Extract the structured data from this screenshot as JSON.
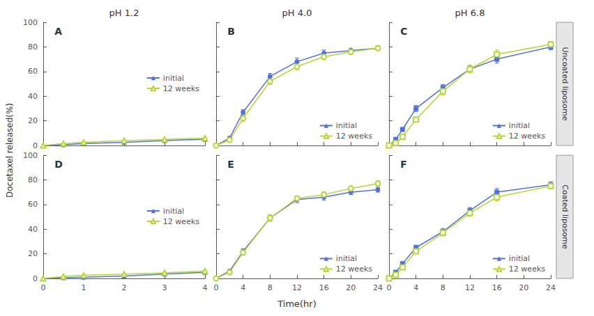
{
  "chart_data": [
    {
      "type": "line",
      "title": "pH 1.2",
      "annotations": [
        "A"
      ],
      "ylabel": "Docetaxel released(%)",
      "x": [
        0,
        0.5,
        1,
        2,
        3,
        4
      ],
      "series": [
        {
          "name": "initial",
          "marker": "triangle",
          "values": [
            0,
            0.5,
            1.5,
            2.5,
            4.0,
            5.0
          ],
          "errors": [
            0,
            0.3,
            0.3,
            0.3,
            0.3,
            0.3
          ]
        },
        {
          "name": "12 weeks",
          "marker": "open triangle",
          "values": [
            0,
            1.5,
            2.5,
            4.0,
            5.0,
            6.0
          ],
          "errors": [
            0,
            0.3,
            0.3,
            0.3,
            0.3,
            0.3
          ]
        }
      ],
      "xlim": [
        0,
        4
      ],
      "xticks": [
        0,
        1,
        2,
        3,
        4
      ],
      "ylim": [
        0,
        100
      ],
      "yticks": [
        0,
        20,
        40,
        60,
        80,
        100
      ],
      "legend": "center right",
      "grid": false,
      "tick_labels": "y"
    },
    {
      "type": "line",
      "title": "pH 4.0",
      "annotations": [
        "B"
      ],
      "x": [
        0,
        2,
        4,
        8,
        12,
        16,
        20,
        24
      ],
      "series": [
        {
          "name": "initial",
          "marker": "circle",
          "values": [
            0,
            6.0,
            27.0,
            56.0,
            68.0,
            75.0,
            77.0,
            79.0
          ],
          "errors": [
            0,
            0.8,
            2.0,
            2.5,
            3.0,
            2.5,
            2.0,
            2.0
          ]
        },
        {
          "name": "12 weeks",
          "marker": "open circle",
          "values": [
            0,
            4.5,
            22.0,
            52.0,
            64.0,
            72.0,
            76.0,
            79.0
          ],
          "errors": [
            0,
            0.8,
            2.5,
            2.5,
            2.5,
            2.5,
            2.0,
            1.5
          ]
        }
      ],
      "xlim": [
        0,
        24
      ],
      "xticks": [
        0,
        4,
        8,
        12,
        16,
        20,
        24
      ],
      "ylim": [
        0,
        100
      ],
      "yticks": [
        0,
        20,
        40,
        60,
        80,
        100
      ],
      "legend": "lower right",
      "grid": false,
      "tick_labels": false
    },
    {
      "type": "line",
      "title": "pH 6.8",
      "annotations": [
        "C"
      ],
      "subtitle": "Uncoated liposome",
      "x": [
        0,
        1,
        2,
        4,
        8,
        12,
        16,
        24
      ],
      "series": [
        {
          "name": "initial",
          "marker": "square",
          "values": [
            0,
            5.0,
            13.0,
            30.0,
            47.0,
            62.0,
            70.0,
            80.0
          ],
          "errors": [
            0,
            1.0,
            1.5,
            2.5,
            2.5,
            3.0,
            3.0,
            2.5
          ]
        },
        {
          "name": "12 weeks",
          "marker": "open square",
          "values": [
            0,
            2.0,
            7.0,
            21.0,
            44.0,
            62.0,
            74.0,
            82.0
          ],
          "errors": [
            0,
            1.0,
            1.5,
            2.0,
            3.0,
            3.0,
            3.5,
            2.5
          ]
        }
      ],
      "xlim": [
        0,
        24
      ],
      "xticks": [
        0,
        4,
        8,
        12,
        16,
        20,
        24
      ],
      "ylim": [
        0,
        100
      ],
      "yticks": [
        0,
        20,
        40,
        60,
        80,
        100
      ],
      "legend": "lower right",
      "grid": false,
      "tick_labels": false
    },
    {
      "type": "line",
      "annotations": [
        "D"
      ],
      "x": [
        0,
        0.5,
        1,
        2,
        3,
        4
      ],
      "series": [
        {
          "name": "initial",
          "marker": "triangle",
          "values": [
            0,
            0.5,
            1.0,
            2.0,
            3.5,
            5.0
          ],
          "errors": [
            0,
            0.3,
            0.3,
            0.3,
            0.3,
            0.3
          ]
        },
        {
          "name": "12 weeks",
          "marker": "open triangle",
          "values": [
            0,
            1.5,
            2.5,
            3.5,
            4.5,
            6.0
          ],
          "errors": [
            0,
            0.3,
            0.3,
            0.3,
            0.3,
            0.3
          ]
        }
      ],
      "xlim": [
        0,
        4
      ],
      "xticks": [
        0,
        1,
        2,
        3,
        4
      ],
      "ylim": [
        0,
        100
      ],
      "yticks": [
        0,
        20,
        40,
        60,
        80,
        100
      ],
      "legend": "center right",
      "grid": false,
      "tick_labels": true
    },
    {
      "type": "line",
      "annotations": [
        "E"
      ],
      "xlabel": "Time(hr)",
      "x": [
        0,
        2,
        4,
        8,
        12,
        16,
        20,
        24
      ],
      "series": [
        {
          "name": "initial",
          "marker": "circle",
          "values": [
            0,
            6.0,
            22.0,
            49.0,
            64.0,
            66.0,
            70.0,
            72.0
          ],
          "errors": [
            0,
            0.8,
            2.0,
            2.5,
            2.5,
            2.5,
            2.0,
            2.0
          ]
        },
        {
          "name": "12 weeks",
          "marker": "open circle",
          "values": [
            0,
            5.0,
            21.0,
            49.0,
            65.0,
            68.0,
            73.0,
            77.0
          ],
          "errors": [
            0,
            0.8,
            2.0,
            2.5,
            2.0,
            2.5,
            2.0,
            2.5
          ]
        }
      ],
      "xlim": [
        0,
        24
      ],
      "xticks": [
        0,
        4,
        8,
        12,
        16,
        20,
        24
      ],
      "ylim": [
        0,
        100
      ],
      "yticks": [
        0,
        20,
        40,
        60,
        80,
        100
      ],
      "legend": "lower right",
      "grid": false,
      "tick_labels": "x"
    },
    {
      "type": "line",
      "annotations": [
        "F"
      ],
      "subtitle": "Coated liposome",
      "x": [
        0,
        1,
        2,
        4,
        8,
        12,
        16,
        24
      ],
      "series": [
        {
          "name": "initial",
          "marker": "square",
          "values": [
            0,
            5.0,
            12.0,
            25.0,
            38.0,
            55.0,
            70.0,
            76.0
          ],
          "errors": [
            0,
            1.0,
            1.5,
            2.0,
            2.5,
            2.5,
            3.0,
            2.5
          ]
        },
        {
          "name": "12 weeks",
          "marker": "open square",
          "values": [
            0,
            3.0,
            9.0,
            22.0,
            37.0,
            53.0,
            66.0,
            75.0
          ],
          "errors": [
            0,
            1.0,
            1.5,
            2.0,
            2.5,
            2.5,
            3.0,
            2.5
          ]
        }
      ],
      "xlim": [
        0,
        24
      ],
      "xticks": [
        0,
        4,
        8,
        12,
        16,
        20,
        24
      ],
      "ylim": [
        0,
        100
      ],
      "yticks": [
        0,
        20,
        40,
        60,
        80,
        100
      ],
      "legend": "lower right",
      "grid": false,
      "tick_labels": "x"
    }
  ]
}
